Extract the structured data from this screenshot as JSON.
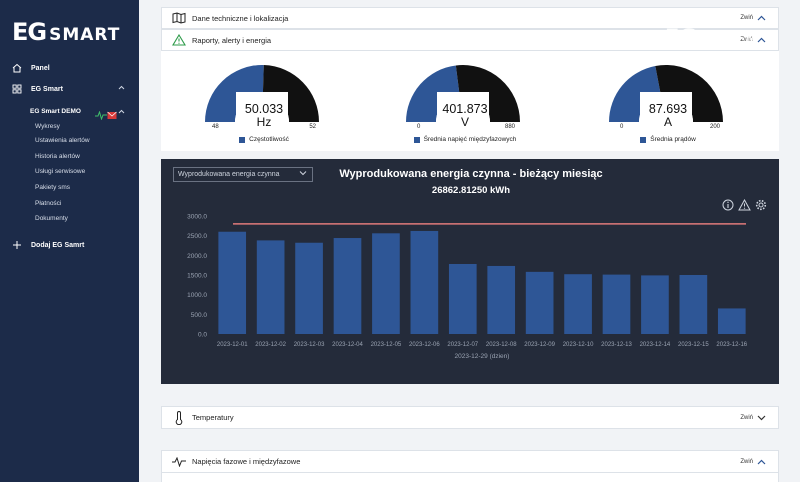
{
  "brand": {
    "logo_eg": "EG",
    "logo_smart": "SMART"
  },
  "sidebar": {
    "items": [
      {
        "label": "Panel",
        "icon": "home-icon"
      },
      {
        "label": "EG Smart",
        "icon": "grid-icon"
      },
      {
        "label": "Dodaj EG Samrt",
        "icon": "plus-icon"
      }
    ],
    "device": {
      "label": "EG Smart DEMO"
    },
    "sub_items": [
      "Wykresy",
      "Ustawienia alertów",
      "Historia alertów",
      "Usługi serwisowe",
      "Pakiety sms",
      "Płatności",
      "Dokumenty"
    ]
  },
  "panels": {
    "tech": {
      "label": "Dane techniczne i lokalizacja",
      "toggle": "Zwiń",
      "icon": "map-icon"
    },
    "reports": {
      "label": "Raporty, alerty i energia",
      "toggle": "Zwiń",
      "icon": "warning-triangle-icon"
    },
    "temps": {
      "label": "Temperatury",
      "toggle": "Zwiń",
      "icon": "thermometer-icon"
    },
    "voltages": {
      "label": "Napięcia fazowe i międzyfazowe",
      "toggle": "Zwiń",
      "icon": "pulse-icon"
    }
  },
  "gauges": [
    {
      "value": "50.033",
      "unit": "Hz",
      "min": "48",
      "max": "52",
      "fraction": 0.51,
      "legend": "Częstotliwość"
    },
    {
      "value": "401.873",
      "unit": "V",
      "min": "0",
      "max": "880",
      "fraction": 0.46,
      "legend": "Średnia napięć międzyfazowych"
    },
    {
      "value": "87.693",
      "unit": "A",
      "min": "0",
      "max": "200",
      "fraction": 0.44,
      "legend": "Średnia prądów"
    }
  ],
  "chart_panel": {
    "select_value": "Wyprodukowana energia czynna",
    "title": "Wyprodukowana energia czynna - bieżący miesiąc",
    "subtitle": "26862.81250 kWh"
  },
  "colors": {
    "bar": "#2e5696",
    "gauge_fill": "#2e5696",
    "gauge_rest": "#111111",
    "limit_line": "#e07a7a",
    "panel_bg": "#242b3a"
  },
  "chart_data": {
    "type": "bar",
    "categories": [
      "2023-12-01",
      "2023-12-02",
      "2023-12-03",
      "2023-12-04",
      "2023-12-05",
      "2023-12-06",
      "2023-12-07",
      "2023-12-08",
      "2023-12-09",
      "2023-12-10",
      "2023-12-13",
      "2023-12-14",
      "2023-12-15",
      "2023-12-16"
    ],
    "values": [
      2600,
      2380,
      2320,
      2440,
      2560,
      2620,
      1780,
      1730,
      1580,
      1520,
      1510,
      1490,
      1500,
      650
    ],
    "limit": 2800,
    "ylim": [
      0,
      3000
    ],
    "yticks": [
      "0.0",
      "500.0",
      "1000.0",
      "1500.0",
      "2000.0",
      "2500.0",
      "3000.0"
    ],
    "xlabel": "2023-12-29 (dzien)",
    "ylabel": ""
  }
}
